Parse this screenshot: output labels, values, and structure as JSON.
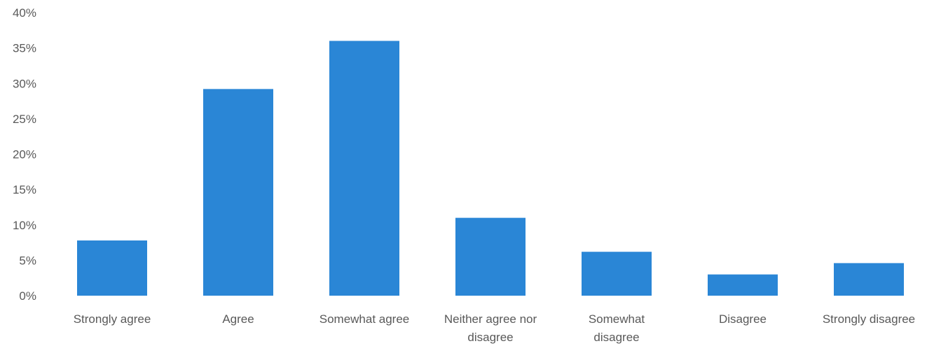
{
  "chart_data": {
    "type": "bar",
    "categories": [
      [
        "Strongly agree"
      ],
      [
        "Agree"
      ],
      [
        "Somewhat agree"
      ],
      [
        "Neither agree nor",
        "disagree"
      ],
      [
        "Somewhat",
        "disagree"
      ],
      [
        "Disagree"
      ],
      [
        "Strongly disagree"
      ]
    ],
    "values": [
      7.8,
      29.2,
      36.0,
      11.0,
      6.2,
      3.0,
      4.6
    ],
    "title": "",
    "xlabel": "",
    "ylabel": "",
    "ylim": [
      0,
      40
    ],
    "y_ticks": [
      "0%",
      "5%",
      "10%",
      "15%",
      "20%",
      "25%",
      "30%",
      "35%",
      "40%"
    ],
    "y_tick_values": [
      0,
      5,
      10,
      15,
      20,
      25,
      30,
      35,
      40
    ],
    "grid": false,
    "legend": "none",
    "bar_color": "#2a86d6"
  }
}
